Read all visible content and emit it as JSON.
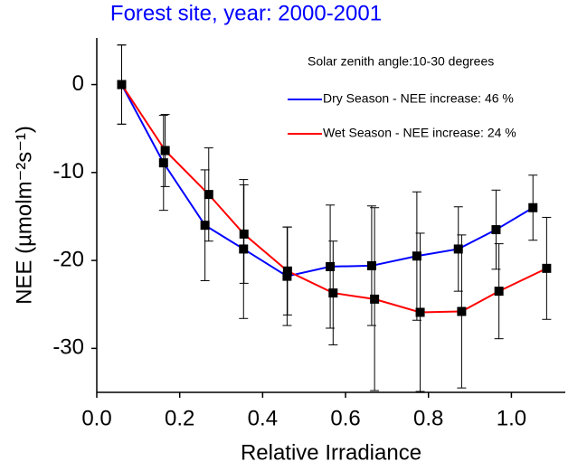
{
  "chart_data": {
    "type": "line",
    "title": "Forest site, year: 2000-2001",
    "annotation": "Solar zenith angle:10-30 degrees",
    "x_label": "Relative Irradiance",
    "y_label": "NEE (µmolm⁻²s⁻¹)",
    "xlim": [
      0,
      1.13
    ],
    "ylim": [
      -35,
      5.3
    ],
    "xticks": [
      {
        "value": 0,
        "label": "0.0"
      },
      0.2,
      0.4,
      0.6,
      0.8,
      {
        "value": 1,
        "label": "1.0"
      }
    ],
    "yticks": [
      0,
      -10,
      -20,
      -30
    ],
    "marker_color": "#000000",
    "series": [
      {
        "name": "Dry Season - NEE increase: 46 %",
        "color": "#0000ff",
        "x": [
          0.06,
          0.161,
          0.261,
          0.354,
          0.459,
          0.563,
          0.663,
          0.772,
          0.872,
          0.963,
          1.052
        ],
        "values": [
          0,
          -8.9,
          -16.0,
          -18.7,
          -21.8,
          -20.7,
          -20.6,
          -19.5,
          -18.7,
          -16.5,
          -14.0
        ],
        "errors": [
          4.5,
          5.4,
          6.3,
          7.9,
          5.6,
          7.0,
          6.8,
          7.3,
          4.8,
          4.5,
          3.7
        ]
      },
      {
        "name": "Wet Season - NEE increase: 24 %",
        "color": "#ff0000",
        "x": [
          0.06,
          0.165,
          0.27,
          0.355,
          0.46,
          0.57,
          0.67,
          0.78,
          0.88,
          0.97,
          1.085
        ],
        "values": [
          0,
          -7.5,
          -12.5,
          -17.0,
          -21.2,
          -23.7,
          -24.4,
          -25.9,
          -25.8,
          -23.5,
          -20.9
        ],
        "errors": [
          4.5,
          4.1,
          5.3,
          5.6,
          5.0,
          5.9,
          10.4,
          9.0,
          8.7,
          5.4,
          5.8
        ]
      }
    ]
  }
}
